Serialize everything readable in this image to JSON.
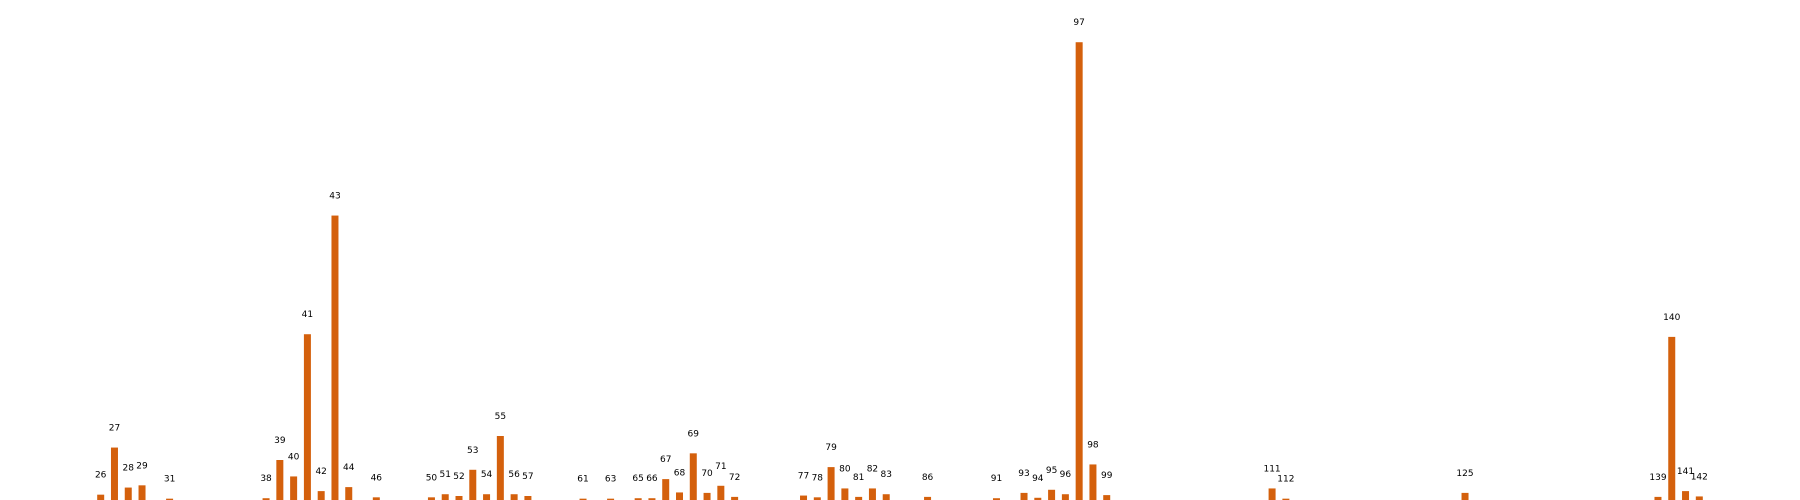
{
  "chart_data": {
    "type": "bar",
    "title": "",
    "xlabel": "",
    "ylabel": "",
    "grid": false,
    "legend": "none",
    "bar_color": "#d4600c",
    "categories": [
      26,
      27,
      28,
      29,
      31,
      38,
      39,
      40,
      41,
      42,
      43,
      44,
      46,
      50,
      51,
      52,
      53,
      54,
      55,
      56,
      57,
      61,
      63,
      65,
      66,
      67,
      68,
      69,
      70,
      71,
      72,
      77,
      78,
      79,
      80,
      81,
      82,
      83,
      86,
      91,
      93,
      94,
      95,
      96,
      97,
      98,
      99,
      111,
      112,
      125,
      139,
      140,
      141,
      142
    ],
    "values": [
      1.2,
      11.8,
      2.8,
      3.3,
      0.3,
      0.4,
      9.0,
      5.3,
      37.3,
      2.0,
      64.0,
      2.9,
      0.6,
      0.6,
      1.3,
      0.9,
      6.8,
      1.3,
      14.4,
      1.3,
      0.9,
      0.3,
      0.3,
      0.4,
      0.4,
      4.7,
      1.7,
      10.5,
      1.6,
      3.2,
      0.7,
      1.0,
      0.6,
      7.4,
      2.6,
      0.7,
      2.6,
      1.3,
      0.7,
      0.4,
      1.6,
      0.5,
      2.3,
      1.3,
      103.0,
      8.0,
      1.1,
      2.6,
      0.3,
      1.6,
      0.7,
      36.7,
      2.0,
      0.8
    ],
    "xlim": [
      20,
      148
    ],
    "ylim": [
      0,
      108
    ]
  }
}
